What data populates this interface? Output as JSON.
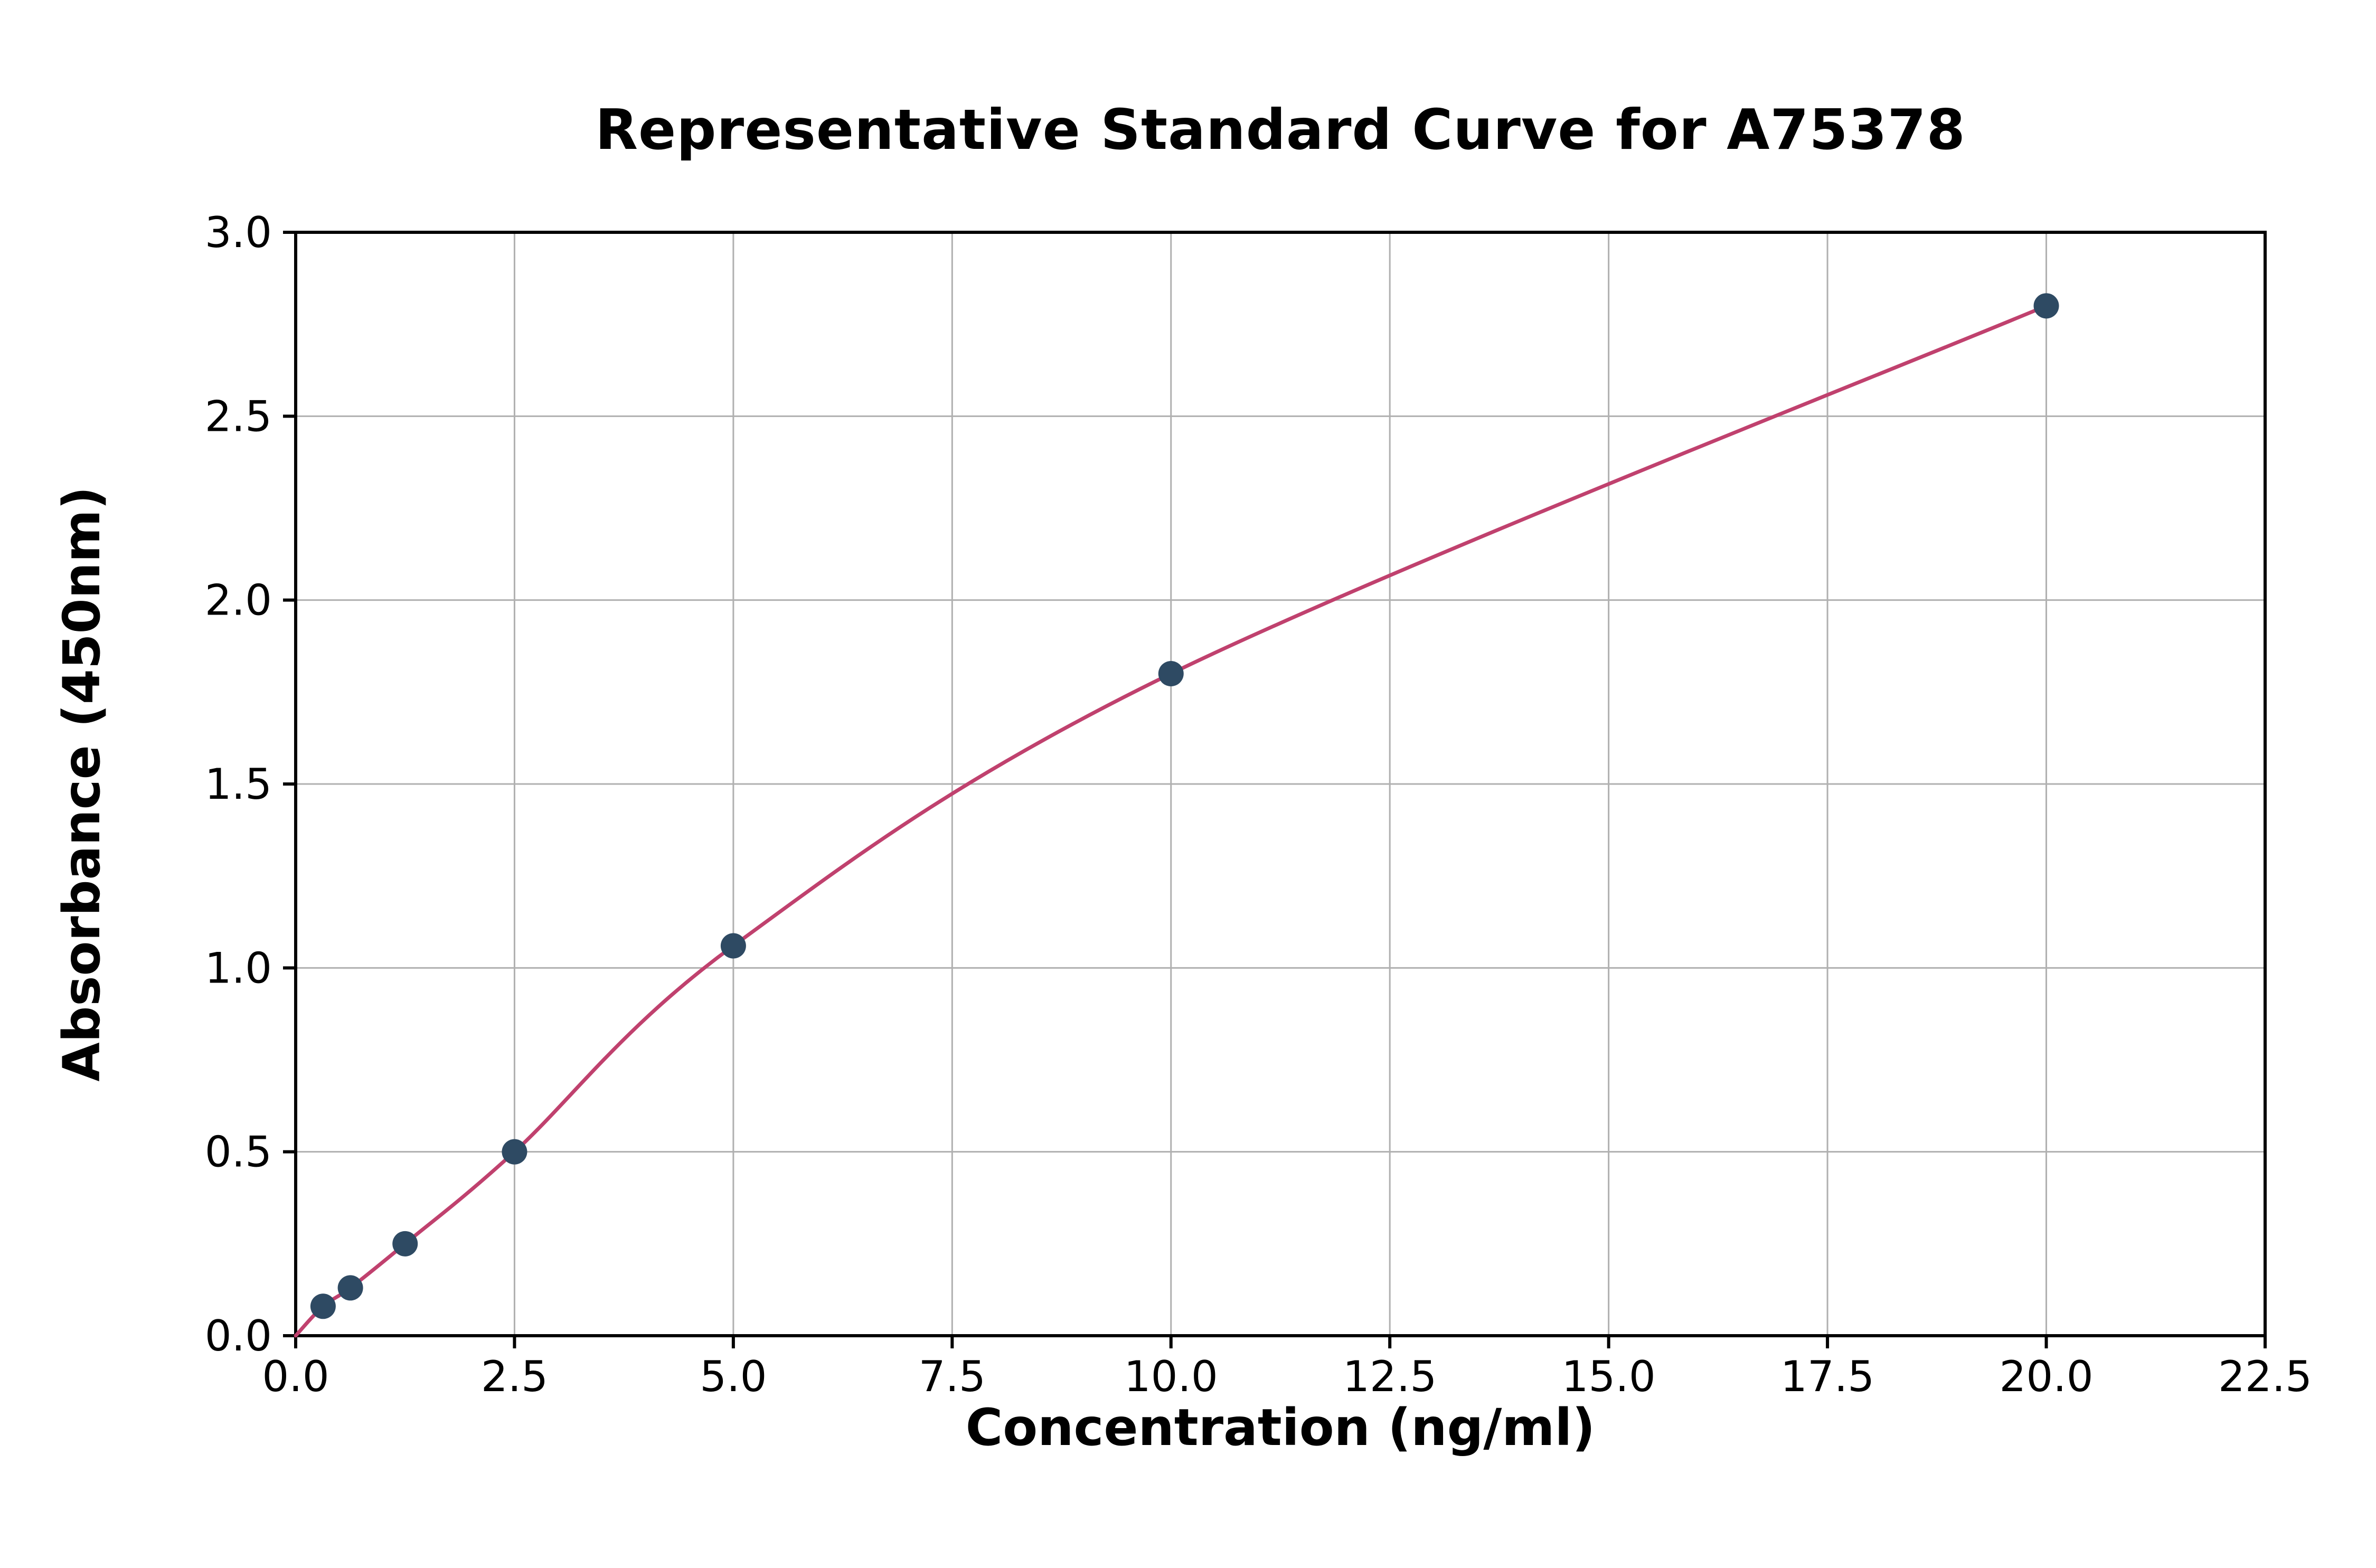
{
  "chart_data": {
    "type": "scatter",
    "title": "Representative Standard Curve for A75378",
    "xlabel": "Concentration (ng/ml)",
    "ylabel": "Absorbance (450nm)",
    "xlim": [
      0,
      22.5
    ],
    "ylim": [
      0,
      3.0
    ],
    "grid": true,
    "legend": "none",
    "xtick_values": [
      0,
      2.5,
      5,
      7.5,
      10,
      12.5,
      15,
      17.5,
      20,
      22.5
    ],
    "xtick_labels": [
      "0.0",
      "2.5",
      "5.0",
      "7.5",
      "10.0",
      "12.5",
      "15.0",
      "17.5",
      "20.0",
      "22.5"
    ],
    "ytick_values": [
      0,
      0.5,
      1,
      1.5,
      2,
      2.5,
      3
    ],
    "ytick_labels": [
      "0.0",
      "0.5",
      "1.0",
      "1.5",
      "2.0",
      "2.5",
      "3.0"
    ],
    "series": [
      {
        "name": "standards",
        "x": [
          0.313,
          0.625,
          1.25,
          2.5,
          5,
          10,
          20
        ],
        "y": [
          0.08,
          0.13,
          0.25,
          0.5,
          1.06,
          1.8,
          2.8
        ]
      }
    ],
    "fit_curve_points": {
      "x": [
        0,
        0.313,
        0.625,
        1.25,
        2.5,
        5,
        10,
        20
      ],
      "y": [
        0.0,
        0.08,
        0.13,
        0.25,
        0.5,
        1.06,
        1.8,
        2.8
      ]
    },
    "colors": {
      "curve": "#c0416e",
      "point": "#2e4a63",
      "grid": "#b0b0b0",
      "axis": "#000000",
      "background": "#ffffff"
    }
  }
}
